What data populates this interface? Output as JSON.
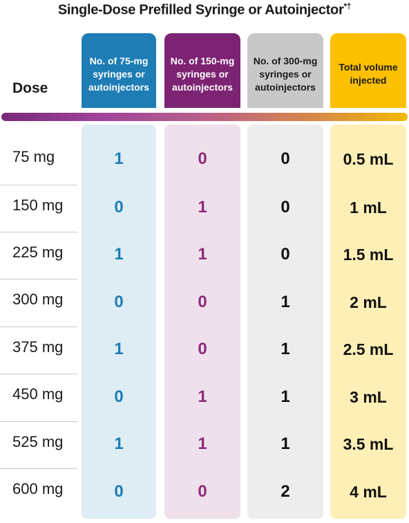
{
  "title": "Single-Dose Prefilled Syringe or Autoinjector",
  "title_marks": "*†",
  "dose_header": "Dose",
  "columns": [
    {
      "line1": "No. of 75-mg",
      "line2": "syringes or",
      "line3": "autoinjectors",
      "bg": "#1e7db5",
      "light": "#deedf4",
      "text": "#ffffff"
    },
    {
      "line1": "No. of 150-mg",
      "line2": "syringes or",
      "line3": "autoinjectors",
      "bg": "#7d2373",
      "light": "#efe1ec",
      "text": "#ffffff"
    },
    {
      "line1": "No. of 300-mg",
      "line2": "syringes or",
      "line3": "autoinjectors",
      "bg": "#c8c8c9",
      "light": "#ededed",
      "text": "#1a1a1a"
    },
    {
      "line1": "Total volume",
      "line2": "injected",
      "line3": "",
      "bg": "#fcc000",
      "light": "#fdefb5",
      "text": "#1a1a1a"
    }
  ],
  "rows": [
    {
      "dose": "75 mg",
      "c75": "1",
      "c150": "0",
      "c300": "0",
      "volume": "0.5 mL"
    },
    {
      "dose": "150 mg",
      "c75": "0",
      "c150": "1",
      "c300": "0",
      "volume": "1 mL"
    },
    {
      "dose": "225 mg",
      "c75": "1",
      "c150": "1",
      "c300": "0",
      "volume": "1.5 mL"
    },
    {
      "dose": "300 mg",
      "c75": "0",
      "c150": "0",
      "c300": "1",
      "volume": "2 mL"
    },
    {
      "dose": "375 mg",
      "c75": "1",
      "c150": "0",
      "c300": "1",
      "volume": "2.5 mL"
    },
    {
      "dose": "450 mg",
      "c75": "0",
      "c150": "1",
      "c300": "1",
      "volume": "3 mL"
    },
    {
      "dose": "525 mg",
      "c75": "1",
      "c150": "1",
      "c300": "1",
      "volume": "3.5 mL"
    },
    {
      "dose": "600 mg",
      "c75": "0",
      "c150": "0",
      "c300": "2",
      "volume": "4 mL"
    }
  ]
}
